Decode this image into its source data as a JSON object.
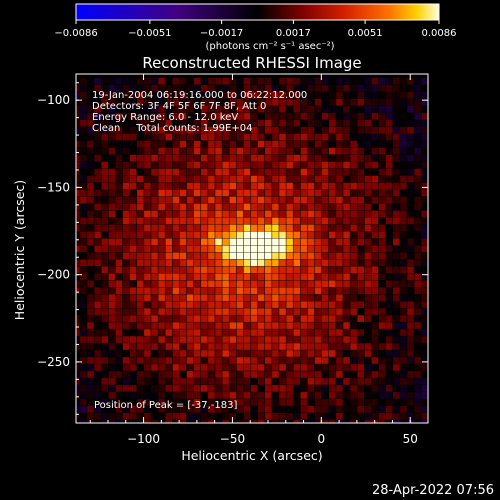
{
  "chart_data": {
    "type": "heatmap",
    "title": "Reconstructed RHESSI Image",
    "xlabel": "Heliocentric X (arcsec)",
    "ylabel": "Heliocentric Y (arcsec)",
    "xlim": [
      -138,
      60
    ],
    "ylim": [
      -285,
      -85
    ],
    "xticks": [
      -100,
      -50,
      0,
      50
    ],
    "xtick_labels": [
      "−100",
      "−50",
      "0",
      "50"
    ],
    "yticks": [
      -100,
      -150,
      -200,
      -250
    ],
    "ytick_labels": [
      "−100",
      "−150",
      "−200",
      "−250"
    ],
    "colorbar": {
      "min": -0.0086,
      "max": 0.0086,
      "ticks": [
        -0.0086,
        -0.0051,
        -0.0017,
        0.0017,
        0.0051,
        0.0086
      ],
      "tick_labels": [
        "−0.0086",
        "−0.0051",
        "−0.0017",
        "0.0017",
        "0.0051",
        "0.0086"
      ],
      "units_label": "(photons cm⁻² s⁻¹ asec⁻²)"
    },
    "colormap": [
      "#0000ff",
      "#400080",
      "#000000",
      "#7a0000",
      "#d42000",
      "#ff7000",
      "#ffd000",
      "#ffffe0"
    ],
    "peak": {
      "x": -37,
      "y": -183,
      "value": 0.0086
    },
    "annotations": [
      "19-Jan-2004 06:19:16.000 to 06:22:12.000",
      "Detectors: 3F 4F 5F 6F 7F 8F, Att 0",
      "Energy Range: 6.0 - 12.0 keV",
      "Clean     Total counts: 1.99E+04"
    ],
    "peak_label": "Position of Peak = [-37,-183]"
  },
  "timestamp": "28-Apr-2022 07:56"
}
